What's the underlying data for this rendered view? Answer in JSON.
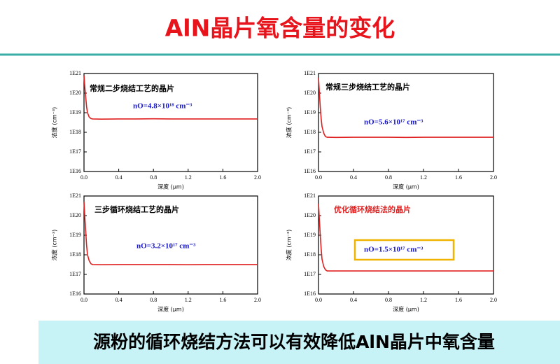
{
  "title": "AlN晶片氧含量的变化",
  "conclusion": "源粉的循环烧结方法可以有效降低AlN晶片中氧含量",
  "chart_data": [
    {
      "type": "line",
      "label": "常规二步烧结工艺的晶片",
      "label_color": "#000000",
      "annotation": "nO=4.8×10¹⁸ cm⁻³",
      "xlabel": "深度 (μm)",
      "ylabel": "浓度 (cm⁻³)",
      "log_y": true,
      "x": [
        0,
        0.01,
        0.02,
        0.03,
        0.04,
        0.06,
        0.08,
        0.1,
        0.2,
        0.4,
        0.6,
        0.8,
        1.0,
        1.2,
        1.4,
        1.6,
        1.8,
        2.0
      ],
      "series": [
        {
          "color": "#e02020",
          "values": [
            8e+20,
            2e+20,
            6e+19,
            2e+19,
            1e+19,
            6e+18,
            5e+18,
            4.8e+18,
            4.7e+18,
            4.8e+18,
            4.8e+18,
            4.9e+18,
            4.8e+18,
            4.8e+18,
            4.8e+18,
            4.8e+18,
            4.8e+18,
            4.8e+18
          ]
        }
      ],
      "xlim": [
        0,
        2
      ],
      "ylim": [
        1e+16,
        1e+21
      ],
      "xticks": [
        {
          "value": 0,
          "label": "0.0"
        },
        {
          "value": 0.4,
          "label": "0.4"
        },
        {
          "value": 0.8,
          "label": "0.8"
        },
        {
          "value": 1.2,
          "label": "1.2"
        },
        {
          "value": 1.6,
          "label": "1.6"
        },
        {
          "value": 2,
          "label": "2.0"
        }
      ],
      "yticks": [
        {
          "value": 1e+16,
          "label": "1E16"
        },
        {
          "value": 1e+17,
          "label": "1E17"
        },
        {
          "value": 1e+18,
          "label": "1E18"
        },
        {
          "value": 1e+19,
          "label": "1E19"
        },
        {
          "value": 1e+20,
          "label": "1E20"
        },
        {
          "value": 1e+21,
          "label": "1E21"
        }
      ]
    },
    {
      "type": "line",
      "label": "常规三步烧结工艺的晶片",
      "label_color": "#000000",
      "annotation": "nO=5.6×10¹⁷ cm⁻³",
      "xlabel": "深度 (μm)",
      "ylabel": "浓度 (cm⁻³)",
      "log_y": true,
      "x": [
        0,
        0.01,
        0.02,
        0.03,
        0.04,
        0.06,
        0.08,
        0.1,
        0.2,
        0.4,
        0.6,
        0.8,
        1.0,
        1.2,
        1.4,
        1.6,
        1.8,
        2.0
      ],
      "series": [
        {
          "color": "#e02020",
          "values": [
            6e+20,
            1e+20,
            2e+19,
            5e+18,
            2e+18,
            9e+17,
            6e+17,
            5.6e+17,
            5.5e+17,
            5.6e+17,
            5.6e+17,
            5.6e+17,
            5.5e+17,
            5.6e+17,
            5.6e+17,
            5.6e+17,
            5.6e+17,
            5.6e+17
          ]
        }
      ],
      "xlim": [
        0,
        2
      ],
      "ylim": [
        1e+16,
        1e+21
      ],
      "xticks": [
        {
          "value": 0,
          "label": "0.0"
        },
        {
          "value": 0.4,
          "label": "0.4"
        },
        {
          "value": 0.8,
          "label": "0.8"
        },
        {
          "value": 1.2,
          "label": "1.2"
        },
        {
          "value": 1.6,
          "label": "1.6"
        },
        {
          "value": 2,
          "label": "2.0"
        }
      ],
      "yticks": [
        {
          "value": 1e+16,
          "label": "1E16"
        },
        {
          "value": 1e+17,
          "label": "1E17"
        },
        {
          "value": 1e+18,
          "label": "1E18"
        },
        {
          "value": 1e+19,
          "label": "1E19"
        },
        {
          "value": 1e+20,
          "label": "1E20"
        },
        {
          "value": 1e+21,
          "label": "1E21"
        }
      ]
    },
    {
      "type": "line",
      "label": "三步循环烧结工艺的晶片",
      "label_color": "#000000",
      "annotation": "nO=3.2×10¹⁷ cm⁻³",
      "xlabel": "深度 (μm)",
      "ylabel": "浓度 (cm⁻³)",
      "log_y": true,
      "x": [
        0,
        0.01,
        0.02,
        0.03,
        0.04,
        0.06,
        0.08,
        0.1,
        0.2,
        0.4,
        0.6,
        0.8,
        1.0,
        1.2,
        1.4,
        1.6,
        1.8,
        2.0
      ],
      "series": [
        {
          "color": "#e02020",
          "values": [
            5e+20,
            8e+19,
            1.5e+19,
            3e+18,
            1e+18,
            5e+17,
            3.5e+17,
            3.2e+17,
            3.1e+17,
            3.2e+17,
            3.2e+17,
            3.2e+17,
            3.2e+17,
            3.1e+17,
            3.2e+17,
            3.2e+17,
            3.2e+17,
            3.2e+17
          ]
        }
      ],
      "xlim": [
        0,
        2
      ],
      "ylim": [
        1e+16,
        1e+21
      ],
      "xticks": [
        {
          "value": 0,
          "label": "0.0"
        },
        {
          "value": 0.4,
          "label": "0.4"
        },
        {
          "value": 0.8,
          "label": "0.8"
        },
        {
          "value": 1.2,
          "label": "1.2"
        },
        {
          "value": 1.6,
          "label": "1.6"
        },
        {
          "value": 2,
          "label": "2.0"
        }
      ],
      "yticks": [
        {
          "value": 1e+16,
          "label": "1E16"
        },
        {
          "value": 1e+17,
          "label": "1E17"
        },
        {
          "value": 1e+18,
          "label": "1E18"
        },
        {
          "value": 1e+19,
          "label": "1E19"
        },
        {
          "value": 1e+20,
          "label": "1E20"
        },
        {
          "value": 1e+21,
          "label": "1E21"
        }
      ]
    },
    {
      "type": "line",
      "label": "优化循环烧结法的晶片",
      "label_color": "#e02020",
      "annotation": "nO=1.5×10¹⁷ cm⁻³",
      "annotation_box_color": "#f0b400",
      "xlabel": "深度 (μm)",
      "ylabel": "浓度 (cm⁻³)",
      "log_y": true,
      "x": [
        0,
        0.01,
        0.02,
        0.03,
        0.04,
        0.06,
        0.08,
        0.1,
        0.2,
        0.4,
        0.6,
        0.8,
        1.0,
        1.2,
        1.4,
        1.6,
        1.8,
        2.0
      ],
      "series": [
        {
          "color": "#e02020",
          "values": [
            4e+20,
            6e+19,
            1e+19,
            2e+18,
            6e+17,
            2.5e+17,
            1.7e+17,
            1.5e+17,
            1.5e+17,
            1.5e+17,
            1.5e+17,
            1.5e+17,
            1.5e+17,
            1.5e+17,
            1.5e+17,
            1.5e+17,
            1.5e+17,
            1.5e+17
          ]
        }
      ],
      "xlim": [
        0,
        2
      ],
      "ylim": [
        1e+16,
        1e+21
      ],
      "xticks": [
        {
          "value": 0,
          "label": "0.0"
        },
        {
          "value": 0.4,
          "label": "0.4"
        },
        {
          "value": 0.8,
          "label": "0.8"
        },
        {
          "value": 1.2,
          "label": "1.2"
        },
        {
          "value": 1.6,
          "label": "1.6"
        },
        {
          "value": 2,
          "label": "2.0"
        }
      ],
      "yticks": [
        {
          "value": 1e+16,
          "label": "1E16"
        },
        {
          "value": 1e+17,
          "label": "1E17"
        },
        {
          "value": 1e+18,
          "label": "1E18"
        },
        {
          "value": 1e+19,
          "label": "1E19"
        },
        {
          "value": 1e+20,
          "label": "1E20"
        },
        {
          "value": 1e+21,
          "label": "1E21"
        }
      ]
    }
  ]
}
